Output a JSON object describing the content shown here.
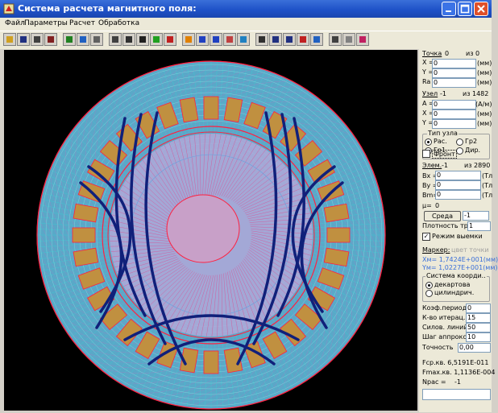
{
  "window": {
    "title": "Система расчета магнитного поля:"
  },
  "menu": [
    "Файл",
    "Параметры",
    "Расчет",
    "Обработка"
  ],
  "toolbar_icons": [
    "open-icon",
    "save-icon",
    "print-icon",
    "cut-icon",
    "model-icon",
    "layers-icon",
    "doc-icon",
    "grid-icon",
    "mesh-icon",
    "fill-icon",
    "green-icon",
    "red-icon",
    "rotate-icon",
    "circle-icon",
    "field-icon",
    "lines-icon",
    "contour-icon",
    "point-icon",
    "line-icon",
    "arc-icon",
    "delete-icon",
    "tool-icon",
    "image-icon",
    "export-icon",
    "chart-icon"
  ],
  "panel": {
    "point": {
      "label": "Точка",
      "value": "0",
      "of_label": "из",
      "of_value": "0",
      "x_label": "X =",
      "x": "0",
      "y_label": "Y =",
      "y": "0",
      "ra_label": "Ra",
      "ra": "0",
      "unit": "(мм)"
    },
    "node": {
      "label": "Узел",
      "value": "-1",
      "of_label": "из",
      "of_value": "1482",
      "a_label": "A =",
      "a": "0",
      "a_unit": "(А/м)",
      "x_label": "X =",
      "x": "0",
      "y_label": "Y =",
      "y": "0",
      "unit": "(мм)"
    },
    "node_type": {
      "title": "Тип узла",
      "options": [
        "Рас.",
        "Гр2",
        "Гр1.",
        "Дир."
      ],
      "selected": "Рас."
    },
    "front_label": "Фронт",
    "element": {
      "label": "Элем.",
      "value": "-1",
      "of_label": "из",
      "of_value": "2890",
      "bx_label": "Bx =",
      "bx": "0",
      "by_label": "By =",
      "by": "0",
      "bm_label": "Bm=",
      "bm": "0",
      "unit": "(Тл",
      "mu_label": "μ=",
      "mu": "0"
    },
    "medium_button": "Среда",
    "medium_value": "-1",
    "current_density_label": "Плотность тр.",
    "current_density": "1",
    "notch_mode": {
      "label": "Режим выемки",
      "checked": true
    },
    "marker": {
      "label": "Маркер:",
      "hint": "цвет точки",
      "xm": "Xм= 1,7424E+001(мм)",
      "ym": "Yм= 1,0227E+001(мм)"
    },
    "coord_system": {
      "title": "Система коорди..",
      "options": [
        "декартова",
        "цилиндрич."
      ],
      "selected": "декартова"
    },
    "params": [
      {
        "label": "Коэф.период.",
        "value": "0"
      },
      {
        "label": "К-во итерац.",
        "value": "15"
      },
      {
        "label": "Силов. линий",
        "value": "50"
      },
      {
        "label": "Шаг аппрокс.",
        "value": "10"
      },
      {
        "label": "Точность",
        "value": "0,00"
      }
    ],
    "stats": {
      "fcp": "Fср.кв.  6,5191E-011",
      "fmax": "Fmax.кв. 1,1136E-004",
      "npac_label": "Npac =",
      "npac": "-1"
    }
  },
  "colors": {
    "mesh": "#40c8d0",
    "slot": "#c09040",
    "core": "#b0a8d8",
    "field_line": "#10207a",
    "edge": "#ff2040",
    "background": "#000000"
  }
}
